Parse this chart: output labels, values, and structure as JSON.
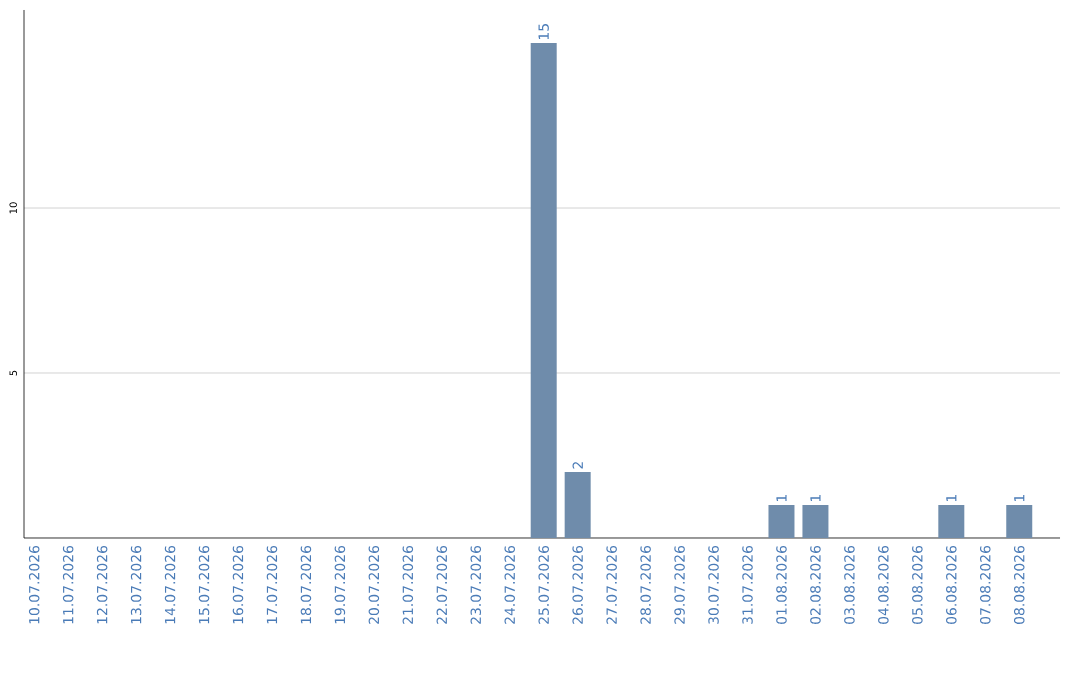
{
  "chart_data": {
    "type": "bar",
    "categories": [
      "10.07.2026",
      "11.07.2026",
      "12.07.2026",
      "13.07.2026",
      "14.07.2026",
      "15.07.2026",
      "16.07.2026",
      "17.07.2026",
      "18.07.2026",
      "19.07.2026",
      "20.07.2026",
      "21.07.2026",
      "22.07.2026",
      "23.07.2026",
      "24.07.2026",
      "25.07.2026",
      "26.07.2026",
      "27.07.2026",
      "28.07.2026",
      "29.07.2026",
      "30.07.2026",
      "31.07.2026",
      "01.08.2026",
      "02.08.2026",
      "03.08.2026",
      "04.08.2026",
      "05.08.2026",
      "06.08.2026",
      "07.08.2026",
      "08.08.2026"
    ],
    "values": [
      0,
      0,
      0,
      0,
      0,
      0,
      0,
      0,
      0,
      0,
      0,
      0,
      0,
      0,
      0,
      15,
      2,
      0,
      0,
      0,
      0,
      0,
      1,
      1,
      0,
      0,
      0,
      1,
      0,
      1
    ],
    "value_labels": [
      null,
      null,
      null,
      null,
      null,
      null,
      null,
      null,
      null,
      null,
      null,
      null,
      null,
      null,
      null,
      "15",
      "2",
      null,
      null,
      null,
      null,
      null,
      "1",
      "1",
      null,
      null,
      null,
      "1",
      null,
      "1"
    ],
    "color": "#6f8cab",
    "ylim": [
      0,
      16
    ],
    "yticks": [
      5,
      10
    ],
    "grid": "y"
  }
}
